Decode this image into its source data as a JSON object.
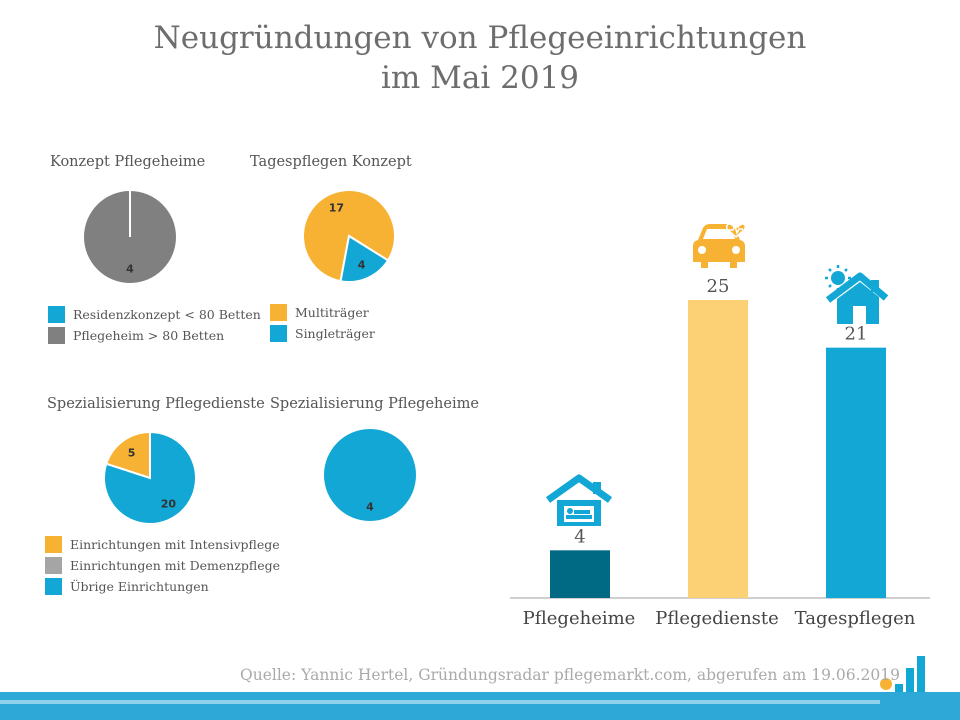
{
  "title_line1": "Neugründungen von Pflegeeinrichtungen",
  "title_line2": "im Mai 2019",
  "source": "Quelle: Yannic Hertel, Gründungsradar pflegemarkt.com, abgerufen am 19.06.2019",
  "colors": {
    "teal_dark": "#006a85",
    "yellow": "#fcd175",
    "blue": "#12a7d4",
    "orange": "#f7b234",
    "gray": "#808080",
    "lightgray": "#a5a5a5"
  },
  "chart_data": [
    {
      "type": "pie",
      "title": "Konzept Pflegeheime",
      "slices": [
        {
          "label": "Residenzkonzept < 80 Betten",
          "value": 0,
          "color": "#12a7d4"
        },
        {
          "label": "Pflegeheim > 80 Betten",
          "value": 4,
          "color": "#808080"
        }
      ]
    },
    {
      "type": "pie",
      "title": "Tagespflegen Konzept",
      "slices": [
        {
          "label": "Multiträger",
          "value": 17,
          "color": "#f7b234"
        },
        {
          "label": "Singleträger",
          "value": 4,
          "color": "#12a7d4"
        }
      ]
    },
    {
      "type": "pie",
      "title": "Spezialisierung Pflegedienste",
      "slices": [
        {
          "label": "Einrichtungen mit Intensivpflege",
          "value": 5,
          "color": "#f7b234"
        },
        {
          "label": "Einrichtungen mit Demenzpflege",
          "value": 0,
          "color": "#a5a5a5"
        },
        {
          "label": "Übrige Einrichtungen",
          "value": 20,
          "color": "#12a7d4"
        }
      ]
    },
    {
      "type": "pie",
      "title": "Spezialisierung Pflegeheime",
      "slices": [
        {
          "label": "Übrige Einrichtungen",
          "value": 4,
          "color": "#12a7d4"
        }
      ]
    },
    {
      "type": "bar",
      "categories": [
        "Pflegeheime",
        "Pflegedienste",
        "Tagespflegen"
      ],
      "values": [
        4,
        25,
        21
      ],
      "colors": [
        "#006a85",
        "#fcd175",
        "#12a7d4"
      ],
      "icons": [
        "house-bed-icon",
        "car-heart-icon",
        "house-sun-icon"
      ],
      "ylim": [
        0,
        25
      ]
    }
  ]
}
